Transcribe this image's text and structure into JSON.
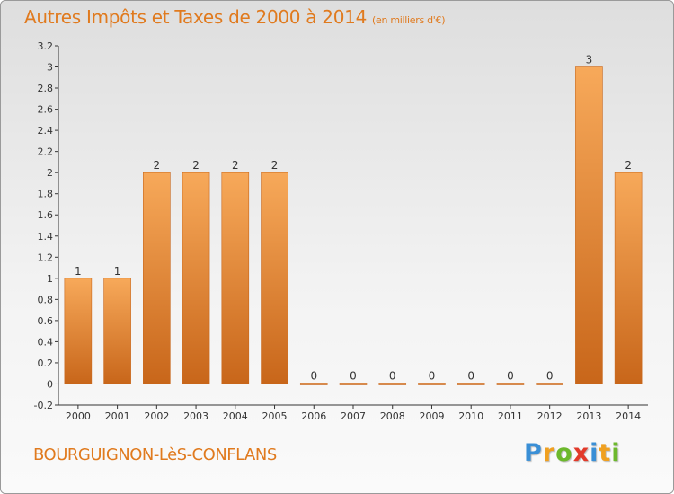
{
  "header": {
    "title": "Autres Impôts et Taxes de 2000 à 2014",
    "unit": "(en milliers d'€)"
  },
  "footer": {
    "commune": "BOURGUIGNON-LèS-CONFLANS",
    "logo_letters": [
      {
        "char": "P",
        "color": "#3a8fd6"
      },
      {
        "char": "r",
        "color": "#f0a020"
      },
      {
        "char": "o",
        "color": "#6cb82c"
      },
      {
        "char": "x",
        "color": "#e23a2a"
      },
      {
        "char": "i",
        "color": "#3a8fd6"
      },
      {
        "char": "t",
        "color": "#f0a020"
      },
      {
        "char": "i",
        "color": "#6cb82c"
      }
    ]
  },
  "colors": {
    "bar_light": "#f7a95a",
    "bar_dark": "#c8661a",
    "accent": "#e07a1e"
  },
  "chart_data": {
    "type": "bar",
    "title": "Autres Impôts et Taxes de 2000 à 2014",
    "subtitle": "(en milliers d'€)",
    "categories": [
      "2000",
      "2001",
      "2002",
      "2003",
      "2004",
      "2005",
      "2006",
      "2007",
      "2008",
      "2009",
      "2010",
      "2011",
      "2012",
      "2013",
      "2014"
    ],
    "values": [
      1,
      1,
      2,
      2,
      2,
      2,
      0,
      0,
      0,
      0,
      0,
      0,
      0,
      3,
      2
    ],
    "data_labels": [
      "1",
      "1",
      "2",
      "2",
      "2",
      "2",
      "0",
      "0",
      "0",
      "0",
      "0",
      "0",
      "0",
      "3",
      "2"
    ],
    "ylim": [
      -0.2,
      3.2
    ],
    "yticks": [
      -0.2,
      0,
      0.2,
      0.4,
      0.6,
      0.8,
      1,
      1.2,
      1.4,
      1.6,
      1.8,
      2,
      2.2,
      2.4,
      2.6,
      2.8,
      3,
      3.2
    ],
    "ytick_labels": [
      "-0.2",
      "0",
      "0.2",
      "0.4",
      "0.6",
      "0.8",
      "1",
      "1.2",
      "1.4",
      "1.6",
      "1.8",
      "2",
      "2.2",
      "2.4",
      "2.6",
      "2.8",
      "3",
      "3.2"
    ],
    "grid": false,
    "xlabel": "",
    "ylabel": ""
  }
}
